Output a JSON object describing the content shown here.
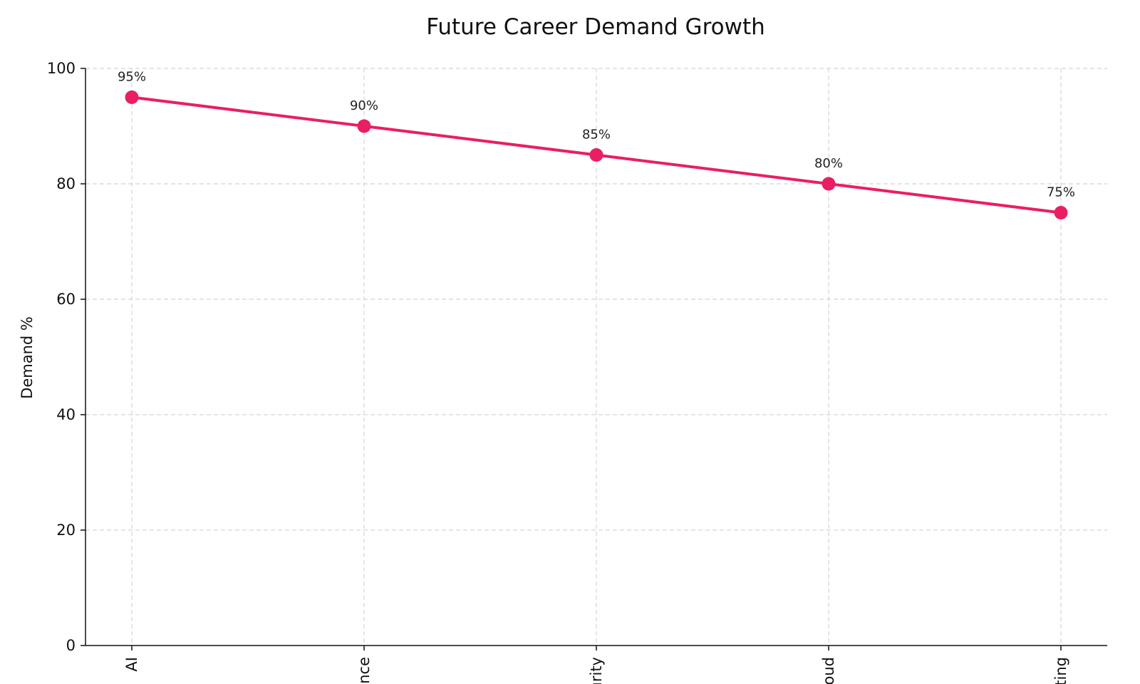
{
  "chart_data": {
    "type": "line",
    "title": "Future Career Demand Growth",
    "xlabel": "",
    "ylabel": "Demand %",
    "categories": [
      "AI",
      "ence",
      "urity",
      "oud",
      "ting"
    ],
    "series": [
      {
        "values": [
          95,
          90,
          85,
          80,
          75
        ],
        "color": "#e91e63"
      }
    ],
    "data_labels": [
      "95%",
      "90%",
      "85%",
      "80%",
      "75%"
    ],
    "ylim": [
      0,
      100
    ],
    "yticks": [
      0,
      20,
      40,
      60,
      80,
      100
    ],
    "ytick_labels": [
      "0",
      "20",
      "40",
      "60",
      "80",
      "100"
    ],
    "grid": true,
    "legend": "none"
  }
}
